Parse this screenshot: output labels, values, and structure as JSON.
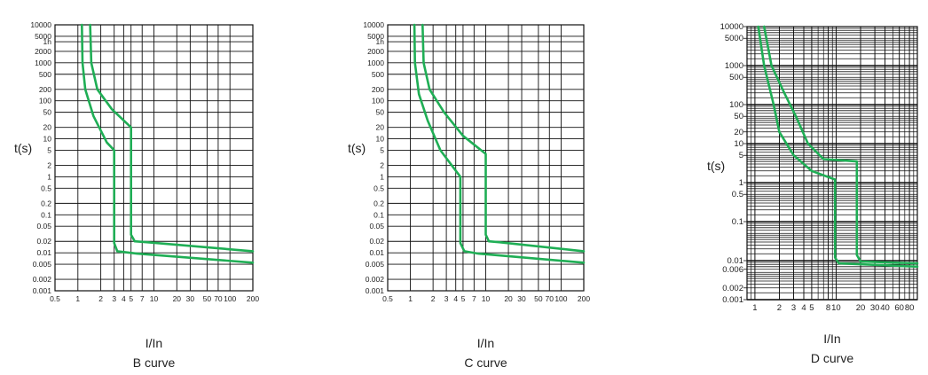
{
  "colors": {
    "curve": "#1fae55",
    "grid": "#111111",
    "text": "#222222"
  },
  "chart_data": [
    {
      "type": "line",
      "ylabel": "t(s)",
      "xlabel": "I/In",
      "caption": "B curve",
      "x_scale": "log",
      "y_scale": "log",
      "xlim": [
        0.5,
        200
      ],
      "ylim": [
        0.001,
        10000
      ],
      "x_ticks": [
        0.5,
        1,
        2,
        3,
        4,
        5,
        7,
        10,
        20,
        30,
        50,
        70,
        100,
        200
      ],
      "x_tick_labels": [
        "0.5",
        "1",
        "2",
        "3",
        "4",
        "5",
        "7",
        "10",
        "20",
        "30",
        "50",
        "70",
        "100",
        "200"
      ],
      "y_ticks": [
        10000,
        5000,
        3600,
        2000,
        1000,
        500,
        200,
        100,
        50,
        20,
        10,
        5,
        2,
        1,
        0.5,
        0.2,
        0.1,
        0.05,
        0.02,
        0.01,
        0.005,
        0.002,
        0.001
      ],
      "y_tick_labels": [
        "10000",
        "5000",
        "1h",
        "2000",
        "1000",
        "500",
        "200",
        "100",
        "50",
        "20",
        "10",
        "5",
        "2",
        "1",
        "0.5",
        "0.2",
        "0.1",
        "0.05",
        "0.02",
        "0.01",
        "0.005",
        "0.002",
        "0.001"
      ],
      "grid": true,
      "series": [
        {
          "points": [
            [
              1.13,
              10000
            ],
            [
              1.15,
              1000
            ],
            [
              1.25,
              200
            ],
            [
              1.6,
              40
            ],
            [
              2.4,
              8
            ],
            [
              3.0,
              5
            ],
            [
              3.0,
              0.018
            ],
            [
              3.3,
              0.011
            ],
            [
              6,
              0.0095
            ],
            [
              200,
              0.0055
            ]
          ]
        },
        {
          "points": [
            [
              1.45,
              10000
            ],
            [
              1.5,
              1000
            ],
            [
              1.8,
              200
            ],
            [
              2.8,
              60
            ],
            [
              5.0,
              20
            ],
            [
              5.0,
              0.03
            ],
            [
              5.6,
              0.02
            ],
            [
              8,
              0.019
            ],
            [
              200,
              0.011
            ]
          ]
        }
      ]
    },
    {
      "type": "line",
      "ylabel": "t(s)",
      "xlabel": "I/In",
      "caption": "C curve",
      "x_scale": "log",
      "y_scale": "log",
      "xlim": [
        0.5,
        200
      ],
      "ylim": [
        0.001,
        10000
      ],
      "x_ticks": [
        0.5,
        1,
        2,
        3,
        4,
        5,
        7,
        10,
        20,
        30,
        50,
        70,
        100,
        200
      ],
      "x_tick_labels": [
        "0.5",
        "1",
        "2",
        "3",
        "4",
        "5",
        "7",
        "10",
        "20",
        "30",
        "50",
        "70",
        "100",
        "200"
      ],
      "y_ticks": [
        10000,
        5000,
        3600,
        2000,
        1000,
        500,
        200,
        100,
        50,
        20,
        10,
        5,
        2,
        1,
        0.5,
        0.2,
        0.1,
        0.05,
        0.02,
        0.01,
        0.005,
        0.002,
        0.001
      ],
      "y_tick_labels": [
        "10000",
        "5000",
        "1h",
        "2000",
        "1000",
        "500",
        "200",
        "100",
        "50",
        "20",
        "10",
        "5",
        "2",
        "1",
        "0.5",
        "0.2",
        "0.1",
        "0.05",
        "0.02",
        "0.01",
        "0.005",
        "0.002",
        "0.001"
      ],
      "grid": true,
      "series": [
        {
          "points": [
            [
              1.13,
              10000
            ],
            [
              1.15,
              1000
            ],
            [
              1.3,
              150
            ],
            [
              1.7,
              30
            ],
            [
              2.5,
              5
            ],
            [
              4.6,
              1
            ],
            [
              4.6,
              0.018
            ],
            [
              5.2,
              0.011
            ],
            [
              8,
              0.0095
            ],
            [
              200,
              0.0055
            ]
          ]
        },
        {
          "points": [
            [
              1.45,
              10000
            ],
            [
              1.5,
              1000
            ],
            [
              1.8,
              200
            ],
            [
              2.8,
              50
            ],
            [
              5.0,
              12
            ],
            [
              10,
              4
            ],
            [
              10,
              0.03
            ],
            [
              11,
              0.02
            ],
            [
              15,
              0.019
            ],
            [
              200,
              0.011
            ]
          ]
        }
      ]
    },
    {
      "type": "line",
      "ylabel": "t(s)",
      "xlabel": "I/In",
      "caption": "D curve",
      "x_scale": "log",
      "y_scale": "log",
      "xlim": [
        0.8,
        100
      ],
      "ylim": [
        0.001,
        10000
      ],
      "x_ticks": [
        1,
        2,
        3,
        4,
        5,
        8,
        10,
        20,
        30,
        40,
        60,
        80
      ],
      "x_tick_labels": [
        "1",
        "2",
        "3",
        "4",
        "5",
        "8",
        "10",
        "20",
        "30",
        "40",
        "60",
        "80"
      ],
      "y_ticks": [
        10000,
        5000,
        1000,
        500,
        100,
        50,
        20,
        10,
        5,
        1,
        0.5,
        0.1,
        0.01,
        0.006,
        0.002,
        0.001
      ],
      "y_tick_labels": [
        "10000",
        "5000",
        "1000",
        "500",
        "100",
        "50",
        "20",
        "10",
        "5",
        "1",
        "0.5",
        "0.1",
        "0.01",
        "0.006",
        "0.002",
        "0.001"
      ],
      "grid": true,
      "series": [
        {
          "points": [
            [
              1.1,
              10000
            ],
            [
              1.3,
              1000
            ],
            [
              1.7,
              100
            ],
            [
              2.0,
              20
            ],
            [
              3.0,
              5
            ],
            [
              5.0,
              2
            ],
            [
              9.7,
              1.2
            ],
            [
              9.7,
              0.012
            ],
            [
              10.8,
              0.0085
            ],
            [
              100,
              0.007
            ]
          ]
        },
        {
          "points": [
            [
              1.3,
              10000
            ],
            [
              1.6,
              1000
            ],
            [
              2.3,
              200
            ],
            [
              3.2,
              50
            ],
            [
              4.5,
              10
            ],
            [
              7.0,
              4
            ],
            [
              18,
              3.5
            ],
            [
              18,
              0.014
            ],
            [
              20,
              0.0095
            ],
            [
              100,
              0.0085
            ]
          ]
        }
      ]
    }
  ]
}
